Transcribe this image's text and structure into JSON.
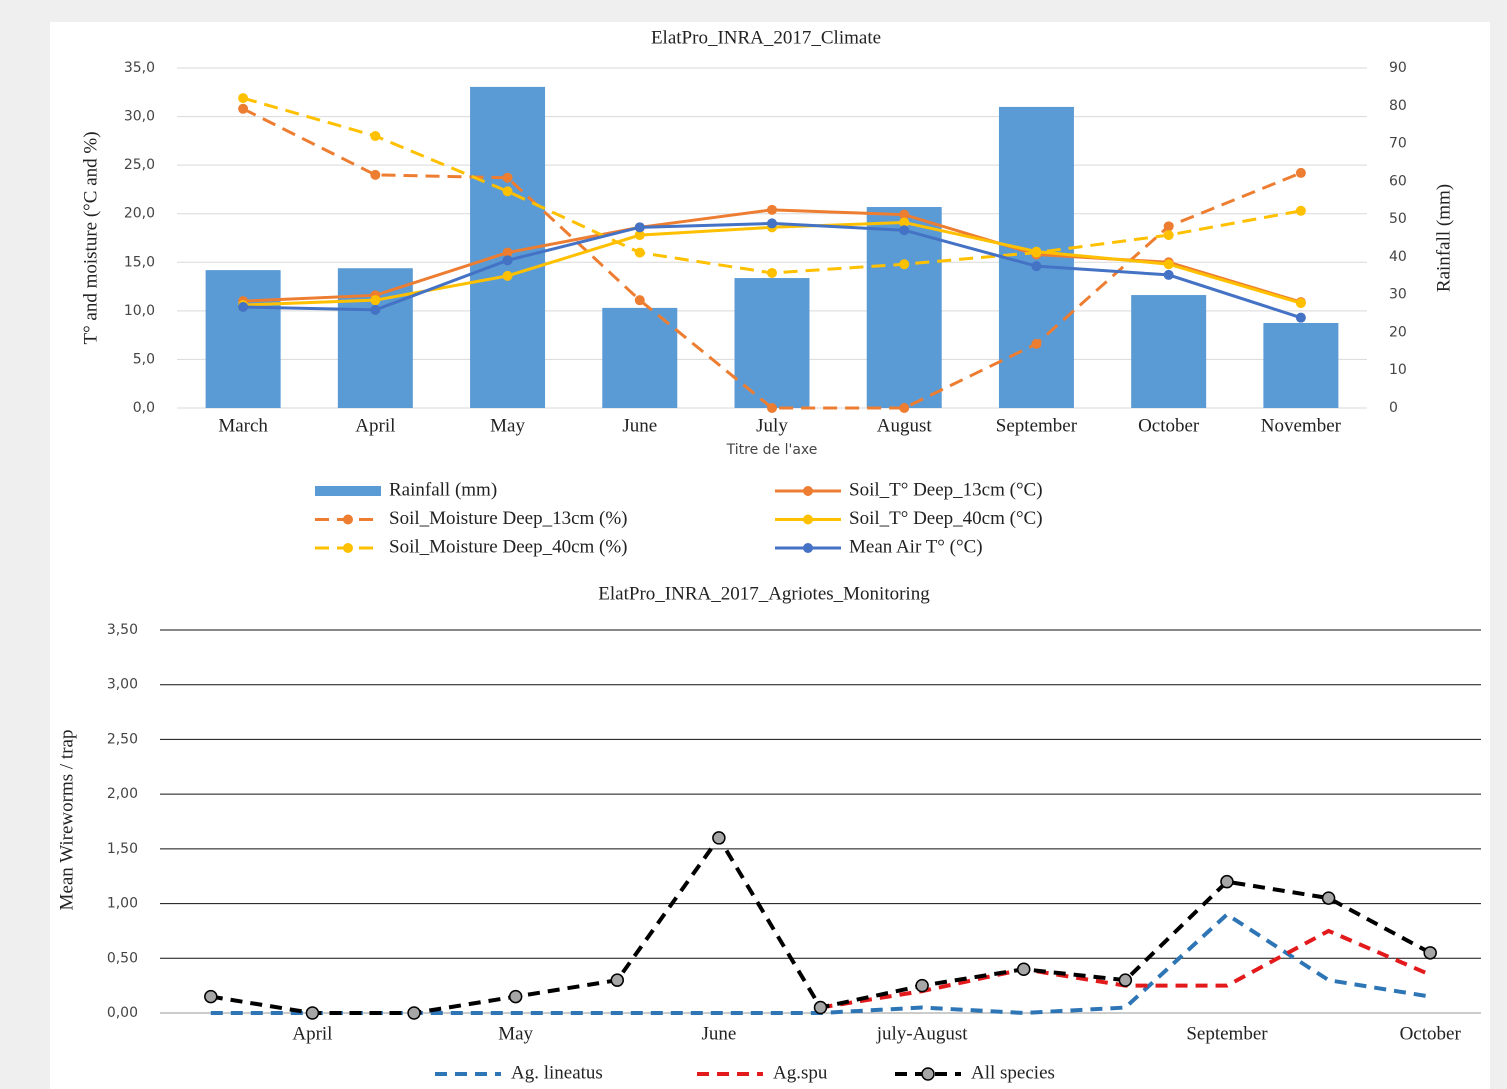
{
  "chart_data": [
    {
      "type": "combo",
      "title": "ElatPro_INRA_2017_Climate",
      "categories": [
        "March",
        "April",
        "May",
        "June",
        "July",
        "August",
        "September",
        "October",
        "November"
      ],
      "x_label": "Titre de l'axe",
      "y_label": "T° and moisture (°C and %)",
      "y2_label": "Rainfall (mm)",
      "ylim": [
        0,
        35
      ],
      "yticks": [
        {
          "value": 0,
          "label": "0,0"
        },
        {
          "value": 5,
          "label": "5,0"
        },
        {
          "value": 10,
          "label": "10,0"
        },
        {
          "value": 15,
          "label": "15,0"
        },
        {
          "value": 20,
          "label": "20,0"
        },
        {
          "value": 25,
          "label": "25,0"
        },
        {
          "value": 30,
          "label": "30,0"
        },
        {
          "value": 35,
          "label": "35,0"
        }
      ],
      "y2lim": [
        0,
        90
      ],
      "y2ticks": [
        0,
        10,
        20,
        30,
        40,
        50,
        60,
        70,
        80,
        90
      ],
      "grid": true,
      "series": [
        {
          "name": "Rainfall (mm)",
          "type": "bar",
          "axis": "y2",
          "color": "#5b9bd5",
          "values": [
            36.5,
            37,
            85,
            26.5,
            34.4,
            53.2,
            79.7,
            29.9,
            22.5
          ]
        },
        {
          "name": "Soil_T°  Deep_13cm (°C)",
          "type": "line",
          "dashed": false,
          "color": "#ed7d31",
          "values": [
            11.0,
            11.6,
            16.0,
            18.6,
            20.4,
            19.9,
            15.8,
            15.0,
            10.9
          ]
        },
        {
          "name": "Soil_Moisture Deep_13cm (%)",
          "type": "line",
          "dashed": true,
          "color": "#ed7d31",
          "values": [
            30.8,
            24.0,
            23.7,
            11.1,
            0,
            0,
            6.6,
            18.7,
            24.2
          ]
        },
        {
          "name": "Soil_T°  Deep_40cm (°C)",
          "type": "line",
          "dashed": false,
          "color": "#ffc000",
          "values": [
            10.6,
            11.1,
            13.6,
            17.8,
            18.6,
            19.1,
            16.1,
            14.8,
            10.8
          ]
        },
        {
          "name": "Soil_Moisture Deep_40cm (%)",
          "type": "line",
          "dashed": true,
          "color": "#ffc000",
          "values": [
            31.9,
            28.0,
            22.3,
            16.0,
            13.9,
            14.8,
            16.0,
            17.8,
            20.3
          ]
        },
        {
          "name": "Mean Air T° (°C)",
          "type": "line",
          "dashed": false,
          "color": "#4472c4",
          "values": [
            10.4,
            10.1,
            15.2,
            18.6,
            19.0,
            18.3,
            14.6,
            13.7,
            9.3
          ]
        }
      ]
    },
    {
      "type": "line",
      "title": "ElatPro_INRA_2017_Agriotes_Monitoring",
      "categories": [
        null,
        "April",
        null,
        "May",
        null,
        "June",
        null,
        "july-August",
        null,
        null,
        "September",
        null,
        "October"
      ],
      "y_label": "Mean Wireworms / trap",
      "ylim": [
        0,
        3.5
      ],
      "yticks": [
        {
          "value": 0,
          "label": "0,00"
        },
        {
          "value": 0.5,
          "label": "0,50"
        },
        {
          "value": 1,
          "label": "1,00"
        },
        {
          "value": 1.5,
          "label": "1,50"
        },
        {
          "value": 2,
          "label": "2,00"
        },
        {
          "value": 2.5,
          "label": "2,50"
        },
        {
          "value": 3,
          "label": "3,00"
        },
        {
          "value": 3.5,
          "label": "3,50"
        }
      ],
      "grid": true,
      "series": [
        {
          "name": "Ag. lineatus",
          "color": "#2e75b6",
          "dashed": true,
          "marker": false,
          "values": [
            0,
            0,
            0,
            0,
            0,
            0,
            0,
            0.05,
            0,
            0.05,
            0.9,
            0.3,
            0.15
          ]
        },
        {
          "name": "Ag.spu",
          "color": "#e31a1c",
          "dashed": true,
          "marker": false,
          "values": [
            null,
            null,
            null,
            null,
            null,
            null,
            0.05,
            0.2,
            0.4,
            0.25,
            0.25,
            0.75,
            0.35
          ]
        },
        {
          "name": "All species",
          "color": "#000000",
          "dashed": true,
          "marker": true,
          "values": [
            0.15,
            0,
            0,
            0.15,
            0.3,
            1.6,
            0.05,
            0.25,
            0.4,
            0.3,
            1.2,
            1.05,
            0.55
          ]
        }
      ]
    }
  ]
}
